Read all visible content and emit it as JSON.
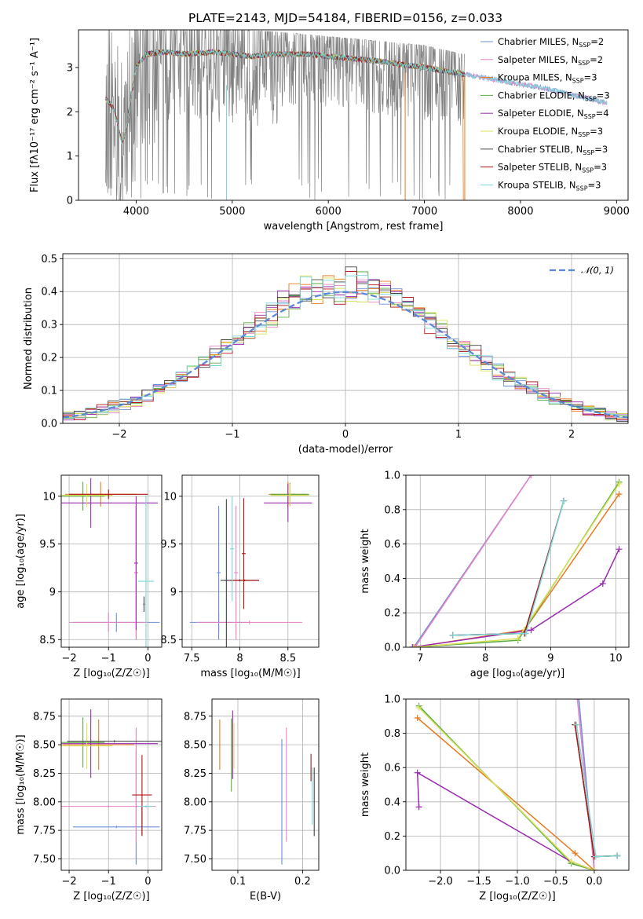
{
  "figure_title": "PLATE=2143, MJD=54184, FIBERID=0156, z=0.033",
  "colors": {
    "Chabrier MILES": "#6c8fd8",
    "Salpeter MILES": "#e882c4",
    "Kroupa MILES": "#e87a1e",
    "Chabrier ELODIE": "#5aab44",
    "Salpeter ELODIE": "#9a2bb0",
    "Kroupa ELODIE": "#d8e055",
    "Chabrier STELIB": "#444444",
    "Salpeter STELIB": "#b01414",
    "Kroupa STELIB": "#78d8d8"
  },
  "chart_data": [
    {
      "id": "spectrum",
      "type": "line",
      "xlabel": "wavelength [Angstrom, rest frame]",
      "ylabel": "Flux [fλ10⁻¹⁷ erg cm⁻² s⁻¹ A⁻¹]",
      "xlim": [
        3400,
        9120
      ],
      "ylim": [
        0,
        3.85
      ],
      "xticks": [
        4000,
        5000,
        6000,
        7000,
        8000,
        9000
      ],
      "yticks": [
        0,
        1,
        2,
        3
      ],
      "grid": false,
      "legend_position": "top-right",
      "data_color": "#808080",
      "legend": [
        {
          "name": "Chabrier MILES",
          "nssp": "2"
        },
        {
          "name": "Salpeter MILES",
          "nssp": "2"
        },
        {
          "name": "Kroupa MILES",
          "nssp": "3"
        },
        {
          "name": "Chabrier ELODIE",
          "nssp": "3"
        },
        {
          "name": "Salpeter ELODIE",
          "nssp": "4"
        },
        {
          "name": "Kroupa ELODIE",
          "nssp": "3"
        },
        {
          "name": "Chabrier STELIB",
          "nssp": "3"
        },
        {
          "name": "Salpeter STELIB",
          "nssp": "3"
        },
        {
          "name": "Kroupa STELIB",
          "nssp": "3"
        }
      ],
      "model_continuum": [
        [
          3680,
          2.3
        ],
        [
          3760,
          2.1
        ],
        [
          3800,
          1.8
        ],
        [
          3850,
          1.3
        ],
        [
          3900,
          1.6
        ],
        [
          3950,
          2.4
        ],
        [
          4000,
          3.0
        ],
        [
          4100,
          3.3
        ],
        [
          4300,
          3.35
        ],
        [
          4500,
          3.3
        ],
        [
          4800,
          3.35
        ],
        [
          5000,
          3.3
        ],
        [
          5200,
          3.25
        ],
        [
          5400,
          3.3
        ],
        [
          5800,
          3.3
        ],
        [
          6000,
          3.25
        ],
        [
          6500,
          3.15
        ],
        [
          7000,
          3.0
        ],
        [
          7400,
          2.85
        ],
        [
          7800,
          2.7
        ],
        [
          8200,
          2.55
        ],
        [
          8600,
          2.35
        ],
        [
          8900,
          2.2
        ]
      ],
      "data_envelope": [
        [
          3680,
          3.85
        ],
        [
          4000,
          3.85
        ],
        [
          4500,
          3.85
        ],
        [
          5000,
          3.85
        ],
        [
          5500,
          3.8
        ],
        [
          6000,
          3.7
        ],
        [
          6500,
          3.6
        ],
        [
          7000,
          3.5
        ],
        [
          7400,
          3.3
        ]
      ]
    },
    {
      "id": "residuals",
      "type": "line",
      "xlabel": "(data-model)/error",
      "ylabel": "Normed distribution",
      "xlim": [
        -2.5,
        2.5
      ],
      "ylim": [
        0,
        0.515
      ],
      "xticks": [
        -2,
        -1,
        0,
        1,
        2
      ],
      "yticks": [
        0.0,
        0.1,
        0.2,
        0.3,
        0.4,
        0.5
      ],
      "grid": true,
      "legend_position": "top-right",
      "reference_label": "𝒩(0, 1)",
      "reference_color": "#5a8ad6",
      "bin_width": 0.1
    },
    {
      "id": "age_vs_Z",
      "type": "scatter",
      "xlabel": "Z [log₁₀(Z/Z☉)]",
      "ylabel": "age  [log₁₀(age/yr)]",
      "xlim": [
        -2.2,
        0.35
      ],
      "ylim": [
        8.42,
        10.22
      ],
      "xticks": [
        -2,
        -1,
        0
      ],
      "yticks": [
        8.5,
        9.0,
        9.5,
        10.0
      ],
      "grid": true,
      "points": [
        {
          "model": "Chabrier MILES",
          "x": -0.3,
          "y": 9.2,
          "xerr": 0.05,
          "yerr": 0.7
        },
        {
          "model": "Chabrier MILES",
          "x": -0.8,
          "y": 8.68,
          "xerr": 1.1,
          "yerr": 0.1
        },
        {
          "model": "Salpeter MILES",
          "x": -0.3,
          "y": 9.2,
          "xerr": 0.05,
          "yerr": 0.7
        },
        {
          "model": "Salpeter MILES",
          "x": -1.0,
          "y": 8.68,
          "xerr": 1.0,
          "yerr": 0.1
        },
        {
          "model": "Kroupa MILES",
          "x": -1.2,
          "y": 10.02,
          "xerr": 0.9,
          "yerr": 0.13
        },
        {
          "model": "Chabrier ELODIE",
          "x": -1.65,
          "y": 10.0,
          "xerr": 0.55,
          "yerr": 0.15
        },
        {
          "model": "Salpeter ELODIE",
          "x": -1.45,
          "y": 9.93,
          "xerr": 1.7,
          "yerr": 0.26
        },
        {
          "model": "Salpeter ELODIE",
          "x": -0.3,
          "y": 9.3,
          "xerr": 0.05,
          "yerr": 0.7
        },
        {
          "model": "Kroupa ELODIE",
          "x": -1.55,
          "y": 10.01,
          "xerr": 0.65,
          "yerr": 0.12
        },
        {
          "model": "Chabrier STELIB",
          "x": -0.1,
          "y": 8.87,
          "xerr": 0.02,
          "yerr": 0.08
        },
        {
          "model": "Salpeter STELIB",
          "x": -1.0,
          "y": 10.02,
          "xerr": 1.0,
          "yerr": 0.05
        },
        {
          "model": "Kroupa STELIB",
          "x": -0.05,
          "y": 9.11,
          "xerr": 0.2,
          "yerr": 0.9
        }
      ]
    },
    {
      "id": "age_vs_mass",
      "type": "scatter",
      "xlabel": "mass [log₁₀(M/M☉)]",
      "ylabel": "",
      "xlim": [
        7.4,
        8.82
      ],
      "ylim": [
        8.42,
        10.22
      ],
      "xticks": [
        7.5,
        8.0,
        8.5
      ],
      "yticks": [
        8.5,
        9.0,
        9.5,
        10.0
      ],
      "grid": true,
      "points": [
        {
          "model": "Chabrier MILES",
          "x": 7.78,
          "y": 9.2,
          "xerr": 0.02,
          "yerr": 0.7
        },
        {
          "model": "Chabrier MILES",
          "x": 7.78,
          "y": 8.68,
          "xerr": 0.3,
          "yerr": 0.1
        },
        {
          "model": "Salpeter MILES",
          "x": 7.96,
          "y": 9.2,
          "xerr": 0.02,
          "yerr": 0.7
        },
        {
          "model": "Salpeter MILES",
          "x": 8.1,
          "y": 8.68,
          "xerr": 0.55,
          "yerr": 0.02
        },
        {
          "model": "Kroupa MILES",
          "x": 8.5,
          "y": 10.02,
          "xerr": 0.2,
          "yerr": 0.13
        },
        {
          "model": "Chabrier ELODIE",
          "x": 8.52,
          "y": 10.02,
          "xerr": 0.2,
          "yerr": 0.12
        },
        {
          "model": "Salpeter ELODIE",
          "x": 8.5,
          "y": 9.93,
          "xerr": 0.25,
          "yerr": 0.2
        },
        {
          "model": "Kroupa ELODIE",
          "x": 8.52,
          "y": 10.01,
          "xerr": 0.2,
          "yerr": 0.12
        },
        {
          "model": "Chabrier STELIB",
          "x": 7.86,
          "y": 9.12,
          "xerr": 0.02,
          "yerr": 0.85
        },
        {
          "model": "Chabrier STELIB",
          "x": 8.0,
          "y": 9.12,
          "xerr": 0.2,
          "yerr": 0.01
        },
        {
          "model": "Salpeter STELIB",
          "x": 8.04,
          "y": 9.4,
          "xerr": 0.02,
          "yerr": 0.58
        },
        {
          "model": "Salpeter STELIB",
          "x": 8.05,
          "y": 9.12,
          "xerr": 0.15,
          "yerr": 0.01
        },
        {
          "model": "Kroupa STELIB",
          "x": 7.92,
          "y": 9.45,
          "xerr": 0.02,
          "yerr": 0.55
        }
      ]
    },
    {
      "id": "weight_vs_age",
      "type": "line",
      "xlabel": "age  [log₁₀(age/yr)]",
      "ylabel": "mass weight",
      "xlim": [
        6.78,
        10.2
      ],
      "ylim": [
        0,
        1
      ],
      "xticks": [
        7,
        8,
        9,
        10
      ],
      "yticks": [
        0.0,
        0.2,
        0.4,
        0.6,
        0.8,
        1.0
      ],
      "grid": true,
      "series": [
        {
          "model": "Chabrier MILES",
          "x": [
            6.9,
            8.7
          ],
          "y": [
            0.0,
            1.0
          ]
        },
        {
          "model": "Salpeter MILES",
          "x": [
            6.92,
            8.7
          ],
          "y": [
            0.0,
            1.0
          ]
        },
        {
          "model": "Kroupa MILES",
          "x": [
            6.9,
            8.6,
            10.05
          ],
          "y": [
            0.0,
            0.1,
            0.89
          ]
        },
        {
          "model": "Chabrier ELODIE",
          "x": [
            6.9,
            8.5,
            10.05
          ],
          "y": [
            0.0,
            0.04,
            0.96
          ]
        },
        {
          "model": "Salpeter ELODIE",
          "x": [
            6.88,
            8.7,
            9.8,
            10.05
          ],
          "y": [
            0.0,
            0.1,
            0.37,
            0.57
          ]
        },
        {
          "model": "Kroupa ELODIE",
          "x": [
            6.9,
            8.5,
            10.05
          ],
          "y": [
            0.0,
            0.05,
            0.95
          ]
        },
        {
          "model": "Chabrier STELIB",
          "x": [
            7.5,
            8.6,
            9.2
          ],
          "y": [
            0.07,
            0.08,
            0.85
          ]
        },
        {
          "model": "Salpeter STELIB",
          "x": [
            7.5,
            8.6,
            9.2
          ],
          "y": [
            0.07,
            0.08,
            0.85
          ]
        },
        {
          "model": "Kroupa STELIB",
          "x": [
            7.5,
            8.62,
            9.2
          ],
          "y": [
            0.07,
            0.08,
            0.85
          ]
        }
      ]
    },
    {
      "id": "mass_vs_Z",
      "type": "scatter",
      "xlabel": "Z [log₁₀(Z/Z☉)]",
      "ylabel": "mass [log₁₀(M/M☉)]",
      "xlim": [
        -2.2,
        0.35
      ],
      "ylim": [
        7.4,
        8.9
      ],
      "xticks": [
        -2,
        -1,
        0
      ],
      "yticks": [
        7.5,
        7.75,
        8.0,
        8.25,
        8.5,
        8.75
      ],
      "grid": true,
      "points": [
        {
          "model": "Chabrier MILES",
          "x": -0.8,
          "y": 7.78,
          "xerr": 1.1,
          "yerr": 0.01
        },
        {
          "model": "Chabrier MILES",
          "x": -0.3,
          "y": 7.95,
          "xerr": 0.01,
          "yerr": 0.5
        },
        {
          "model": "Salpeter MILES",
          "x": -1.0,
          "y": 7.96,
          "xerr": 1.2,
          "yerr": 0.01
        },
        {
          "model": "Salpeter MILES",
          "x": -0.3,
          "y": 8.15,
          "xerr": 0.01,
          "yerr": 0.5
        },
        {
          "model": "Kroupa MILES",
          "x": -1.25,
          "y": 8.5,
          "xerr": 0.9,
          "yerr": 0.22
        },
        {
          "model": "Chabrier ELODIE",
          "x": -1.65,
          "y": 8.52,
          "xerr": 0.55,
          "yerr": 0.22
        },
        {
          "model": "Salpeter ELODIE",
          "x": -1.45,
          "y": 8.51,
          "xerr": 1.7,
          "yerr": 0.3
        },
        {
          "model": "Kroupa ELODIE",
          "x": -1.55,
          "y": 8.49,
          "xerr": 0.65,
          "yerr": 0.2
        },
        {
          "model": "Chabrier STELIB",
          "x": -0.85,
          "y": 8.53,
          "xerr": 1.2,
          "yerr": 0.01
        },
        {
          "model": "Chabrier STELIB",
          "x": -0.15,
          "y": 7.83,
          "xerr": 0.01,
          "yerr": 0.13
        },
        {
          "model": "Salpeter STELIB",
          "x": -0.15,
          "y": 8.06,
          "xerr": 0.25,
          "yerr": 0.35
        },
        {
          "model": "Kroupa STELIB",
          "x": -0.05,
          "y": 7.96,
          "xerr": 0.2,
          "yerr": 0.01
        }
      ]
    },
    {
      "id": "mass_vs_EBV",
      "type": "scatter",
      "xlabel": "E(B-V)",
      "ylabel": "",
      "xlim": [
        0.06,
        0.225
      ],
      "ylim": [
        7.4,
        8.9
      ],
      "xticks": [
        0.1,
        0.2
      ],
      "yticks": [
        7.5,
        7.75,
        8.0,
        8.25,
        8.5,
        8.75
      ],
      "grid": true,
      "points": [
        {
          "model": "Kroupa MILES",
          "x": 0.072,
          "y": 8.5,
          "yerr": 0.22
        },
        {
          "model": "Chabrier ELODIE",
          "x": 0.09,
          "y": 8.41,
          "yerr": 0.32
        },
        {
          "model": "Salpeter ELODIE",
          "x": 0.092,
          "y": 8.5,
          "yerr": 0.3
        },
        {
          "model": "Kroupa ELODIE",
          "x": 0.094,
          "y": 8.49,
          "yerr": 0.2
        },
        {
          "model": "Chabrier MILES",
          "x": 0.168,
          "y": 8.0,
          "yerr": 0.55
        },
        {
          "model": "Salpeter MILES",
          "x": 0.175,
          "y": 8.15,
          "yerr": 0.5
        },
        {
          "model": "Salpeter STELIB",
          "x": 0.213,
          "y": 8.3,
          "yerr": 0.12
        },
        {
          "model": "Kroupa STELIB",
          "x": 0.215,
          "y": 8.05,
          "yerr": 0.25
        },
        {
          "model": "Chabrier STELIB",
          "x": 0.218,
          "y": 8.0,
          "yerr": 0.3
        }
      ]
    },
    {
      "id": "weight_vs_Z",
      "type": "line",
      "xlabel": "Z [log₁₀(Z/Z☉)]",
      "ylabel": "mass weight",
      "xlim": [
        -2.45,
        0.45
      ],
      "ylim": [
        0,
        1
      ],
      "xticks": [
        -2.0,
        -1.5,
        -1.0,
        -0.5,
        0.0
      ],
      "yticks": [
        0.0,
        0.2,
        0.4,
        0.6,
        0.8,
        1.0
      ],
      "grid": true,
      "series": [
        {
          "model": "Chabrier MILES",
          "x": [
            -0.2,
            0.0
          ],
          "y": [
            1.0,
            0.0
          ]
        },
        {
          "model": "Salpeter MILES",
          "x": [
            -0.22,
            0.0
          ],
          "y": [
            1.0,
            0.0
          ]
        },
        {
          "model": "Kroupa MILES",
          "x": [
            -2.3,
            -0.25,
            0.0
          ],
          "y": [
            0.89,
            0.1,
            0.0
          ]
        },
        {
          "model": "Chabrier ELODIE",
          "x": [
            -2.28,
            -0.3,
            0.0
          ],
          "y": [
            0.96,
            0.04,
            0.0
          ]
        },
        {
          "model": "Salpeter ELODIE",
          "x": [
            -2.28,
            -2.3,
            -0.3,
            0.0
          ],
          "y": [
            0.37,
            0.57,
            0.05,
            0.0
          ]
        },
        {
          "model": "Kroupa ELODIE",
          "x": [
            -2.28,
            -0.3,
            0.0
          ],
          "y": [
            0.95,
            0.05,
            0.0
          ]
        },
        {
          "model": "Chabrier STELIB",
          "x": [
            -0.25,
            0.0,
            0.3
          ],
          "y": [
            0.85,
            0.08,
            0.085
          ]
        },
        {
          "model": "Salpeter STELIB",
          "x": [
            -0.25,
            0.0,
            0.3
          ],
          "y": [
            0.85,
            0.08,
            0.085
          ]
        },
        {
          "model": "Kroupa STELIB",
          "x": [
            -0.23,
            0.02,
            0.3
          ],
          "y": [
            0.85,
            0.08,
            0.085
          ]
        }
      ]
    }
  ]
}
